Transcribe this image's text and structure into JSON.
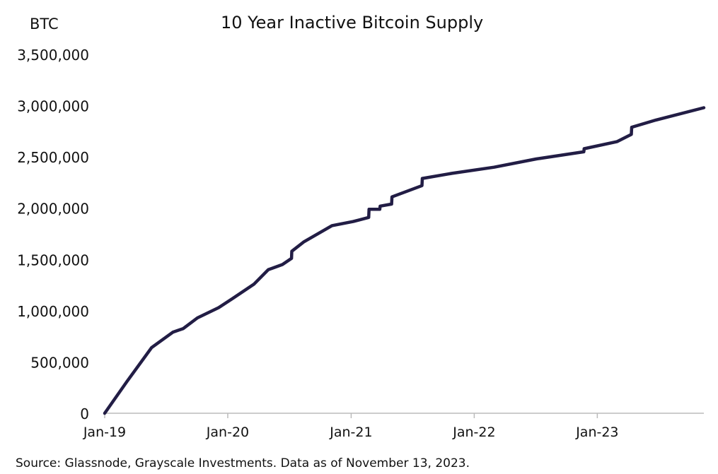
{
  "chart_data": {
    "type": "line",
    "title": "10 Year Inactive Bitcoin Supply",
    "ylabel": "BTC",
    "xlabel": "",
    "source": "Source: Glassnode, Grayscale Investments. Data as of November 13, 2023.",
    "ylim": [
      0,
      3500000
    ],
    "xlim": [
      "2019-01-01",
      "2023-11-13"
    ],
    "yticks": [
      0,
      500000,
      1000000,
      1500000,
      2000000,
      2500000,
      3000000,
      3500000
    ],
    "ytick_labels": [
      "0",
      "500,000",
      "1,000,000",
      "1,500,000",
      "2,000,000",
      "2,500,000",
      "3,000,000",
      "3,500,000"
    ],
    "xticks": [
      "2019-01-01",
      "2020-01-01",
      "2021-01-01",
      "2022-01-01",
      "2023-01-01"
    ],
    "xtick_labels": [
      "Jan-19",
      "Jan-20",
      "Jan-21",
      "Jan-22",
      "Jan-23"
    ],
    "grid": false,
    "line_color": "#221d45",
    "series": [
      {
        "x": [
          "2019-01-01",
          "2019-03-08",
          "2019-05-20",
          "2019-07-22",
          "2019-08-22",
          "2019-10-03",
          "2019-12-05",
          "2020-01-16",
          "2020-03-19",
          "2020-04-30",
          "2020-06-11",
          "2020-07-08",
          "2020-07-09",
          "2020-08-13",
          "2020-11-05",
          "2021-01-07",
          "2021-02-22",
          "2021-02-23",
          "2021-03-27",
          "2021-03-28",
          "2021-05-01",
          "2021-05-02",
          "2021-07-30",
          "2021-07-31",
          "2021-10-27",
          "2022-03-01",
          "2022-07-04",
          "2022-11-22",
          "2022-11-23",
          "2023-03-01",
          "2023-04-12",
          "2023-04-13",
          "2023-06-24",
          "2023-11-13"
        ],
        "y": [
          0,
          310000,
          640000,
          790000,
          826000,
          930000,
          1030000,
          1120000,
          1260000,
          1400000,
          1450000,
          1510000,
          1580000,
          1670000,
          1830000,
          1870000,
          1910000,
          1990000,
          1990000,
          2020000,
          2040000,
          2110000,
          2220000,
          2290000,
          2340000,
          2400000,
          2480000,
          2550000,
          2580000,
          2650000,
          2720000,
          2790000,
          2860000,
          2980000
        ]
      }
    ]
  }
}
